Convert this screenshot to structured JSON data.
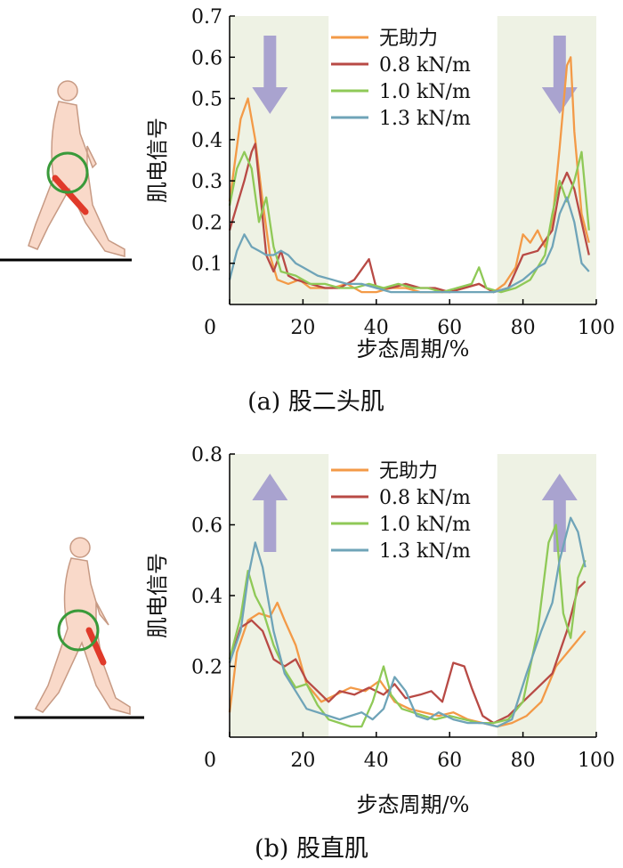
{
  "colors": {
    "series": [
      "#f39a47",
      "#b84a45",
      "#8fc957",
      "#6fa4b8"
    ],
    "band": "#eef2e4",
    "arrow": "#a9a3cf",
    "skin": "#f9d9c9",
    "skin_stroke": "#c79a84",
    "circle": "#3a9a3a",
    "muscle": "#e03a2a"
  },
  "chart_data": [
    {
      "type": "line",
      "caption": "(a) 股二头肌",
      "xlabel": "步态周期/%",
      "ylabel": "肌电信号",
      "xlim": [
        0,
        100
      ],
      "ylim": [
        0,
        0.7
      ],
      "xticks": [
        0,
        20,
        40,
        60,
        80,
        100
      ],
      "yticks": [
        0.1,
        0.2,
        0.3,
        0.4,
        0.5,
        0.6,
        0.7
      ],
      "ytick_labels": [
        "0.1",
        "0.2",
        "0.3",
        "0.4",
        "0.5",
        "0.6",
        "0.7"
      ],
      "shaded_x_ranges": [
        [
          0,
          27
        ],
        [
          73,
          100
        ]
      ],
      "arrows": [
        "down",
        "down"
      ],
      "legend_position": "top-right",
      "series": [
        {
          "name": "无助力",
          "x": [
            0,
            3,
            5,
            7,
            9,
            11,
            13,
            16,
            19,
            22,
            25,
            28,
            32,
            36,
            40,
            44,
            48,
            52,
            56,
            60,
            64,
            68,
            72,
            75,
            78,
            80,
            82,
            84,
            86,
            88,
            90,
            92,
            93,
            94,
            96,
            98
          ],
          "values": [
            0.25,
            0.45,
            0.5,
            0.4,
            0.25,
            0.12,
            0.06,
            0.05,
            0.06,
            0.04,
            0.04,
            0.04,
            0.05,
            0.03,
            0.03,
            0.04,
            0.04,
            0.03,
            0.03,
            0.03,
            0.04,
            0.05,
            0.03,
            0.05,
            0.09,
            0.17,
            0.15,
            0.18,
            0.14,
            0.2,
            0.38,
            0.58,
            0.6,
            0.42,
            0.22,
            0.15
          ]
        },
        {
          "name": "0.8 kN/m",
          "x": [
            0,
            2,
            4,
            6,
            7,
            8,
            10,
            12,
            14,
            16,
            18,
            22,
            26,
            30,
            34,
            38,
            40,
            44,
            48,
            52,
            56,
            60,
            64,
            68,
            72,
            76,
            80,
            84,
            88,
            90,
            92,
            94,
            96,
            98
          ],
          "values": [
            0.18,
            0.24,
            0.3,
            0.37,
            0.39,
            0.3,
            0.12,
            0.08,
            0.13,
            0.07,
            0.06,
            0.05,
            0.04,
            0.04,
            0.06,
            0.11,
            0.04,
            0.04,
            0.05,
            0.04,
            0.04,
            0.03,
            0.04,
            0.05,
            0.03,
            0.04,
            0.12,
            0.13,
            0.18,
            0.28,
            0.32,
            0.28,
            0.2,
            0.12
          ]
        },
        {
          "name": "1.0 kN/m",
          "x": [
            0,
            2,
            4,
            6,
            8,
            10,
            12,
            14,
            18,
            22,
            26,
            30,
            34,
            38,
            42,
            46,
            50,
            54,
            58,
            62,
            66,
            68,
            70,
            74,
            78,
            82,
            86,
            88,
            90,
            92,
            94,
            96,
            98
          ],
          "values": [
            0.24,
            0.33,
            0.37,
            0.33,
            0.2,
            0.26,
            0.14,
            0.08,
            0.07,
            0.05,
            0.05,
            0.04,
            0.04,
            0.05,
            0.04,
            0.05,
            0.04,
            0.04,
            0.03,
            0.04,
            0.05,
            0.09,
            0.04,
            0.03,
            0.04,
            0.06,
            0.12,
            0.22,
            0.3,
            0.25,
            0.3,
            0.37,
            0.18
          ]
        },
        {
          "name": "1.3 kN/m",
          "x": [
            0,
            2,
            4,
            6,
            8,
            10,
            12,
            14,
            16,
            18,
            20,
            24,
            28,
            32,
            36,
            40,
            44,
            48,
            52,
            56,
            60,
            64,
            68,
            72,
            76,
            80,
            84,
            86,
            88,
            90,
            92,
            94,
            96,
            98
          ],
          "values": [
            0.06,
            0.13,
            0.17,
            0.14,
            0.13,
            0.12,
            0.12,
            0.13,
            0.12,
            0.1,
            0.09,
            0.07,
            0.06,
            0.05,
            0.05,
            0.04,
            0.03,
            0.03,
            0.03,
            0.03,
            0.03,
            0.03,
            0.03,
            0.03,
            0.04,
            0.06,
            0.09,
            0.1,
            0.14,
            0.22,
            0.26,
            0.2,
            0.1,
            0.08
          ]
        }
      ]
    },
    {
      "type": "line",
      "caption": "(b) 股直肌",
      "xlabel": "步态周期/%",
      "ylabel": "肌电信号",
      "xlim": [
        0,
        100
      ],
      "ylim": [
        0,
        0.8
      ],
      "xticks": [
        0,
        20,
        40,
        60,
        80,
        100
      ],
      "yticks": [
        0.2,
        0.4,
        0.6,
        0.8
      ],
      "ytick_labels": [
        "0.2",
        "0.4",
        "0.6",
        "0.8"
      ],
      "shaded_x_ranges": [
        [
          0,
          27
        ],
        [
          73,
          100
        ]
      ],
      "arrows": [
        "up",
        "up"
      ],
      "legend_position": "top-right",
      "series": [
        {
          "name": "无助力",
          "x": [
            0,
            2,
            5,
            8,
            11,
            13,
            15,
            18,
            21,
            25,
            29,
            33,
            37,
            41,
            45,
            49,
            53,
            57,
            61,
            65,
            69,
            73,
            77,
            81,
            85,
            89,
            93,
            97
          ],
          "values": [
            0.07,
            0.24,
            0.33,
            0.35,
            0.34,
            0.38,
            0.33,
            0.26,
            0.15,
            0.1,
            0.12,
            0.14,
            0.13,
            0.16,
            0.1,
            0.08,
            0.07,
            0.06,
            0.07,
            0.05,
            0.04,
            0.03,
            0.04,
            0.06,
            0.1,
            0.2,
            0.25,
            0.3
          ]
        },
        {
          "name": "0.8 kN/m",
          "x": [
            0,
            3,
            6,
            9,
            12,
            15,
            18,
            21,
            24,
            27,
            30,
            34,
            38,
            42,
            45,
            48,
            52,
            55,
            58,
            61,
            64,
            66,
            69,
            72,
            76,
            80,
            84,
            88,
            92,
            95,
            97
          ],
          "values": [
            0.21,
            0.31,
            0.33,
            0.3,
            0.22,
            0.2,
            0.22,
            0.16,
            0.13,
            0.1,
            0.13,
            0.12,
            0.14,
            0.12,
            0.15,
            0.11,
            0.12,
            0.13,
            0.1,
            0.21,
            0.2,
            0.14,
            0.06,
            0.04,
            0.06,
            0.1,
            0.14,
            0.18,
            0.3,
            0.42,
            0.44
          ]
        },
        {
          "name": "1.0 kN/m",
          "x": [
            0,
            3,
            5,
            7,
            9,
            12,
            15,
            18,
            21,
            24,
            27,
            30,
            33,
            36,
            39,
            42,
            44,
            47,
            50,
            53,
            56,
            60,
            64,
            68,
            72,
            76,
            80,
            84,
            87,
            89,
            91,
            93,
            95,
            97
          ],
          "values": [
            0.22,
            0.34,
            0.47,
            0.4,
            0.36,
            0.26,
            0.19,
            0.14,
            0.15,
            0.09,
            0.05,
            0.04,
            0.03,
            0.03,
            0.1,
            0.2,
            0.12,
            0.08,
            0.07,
            0.06,
            0.05,
            0.06,
            0.05,
            0.04,
            0.04,
            0.05,
            0.1,
            0.3,
            0.55,
            0.6,
            0.35,
            0.28,
            0.45,
            0.5
          ]
        },
        {
          "name": "1.3 kN/m",
          "x": [
            0,
            3,
            5,
            7,
            9,
            12,
            15,
            18,
            21,
            24,
            27,
            30,
            33,
            36,
            39,
            42,
            45,
            48,
            51,
            54,
            57,
            61,
            65,
            69,
            73,
            77,
            81,
            85,
            88,
            90,
            93,
            95,
            97
          ],
          "values": [
            0.21,
            0.3,
            0.45,
            0.55,
            0.48,
            0.3,
            0.18,
            0.13,
            0.08,
            0.07,
            0.06,
            0.05,
            0.06,
            0.07,
            0.05,
            0.08,
            0.17,
            0.13,
            0.06,
            0.05,
            0.07,
            0.05,
            0.04,
            0.04,
            0.03,
            0.05,
            0.18,
            0.3,
            0.38,
            0.5,
            0.62,
            0.58,
            0.48
          ]
        }
      ]
    }
  ]
}
